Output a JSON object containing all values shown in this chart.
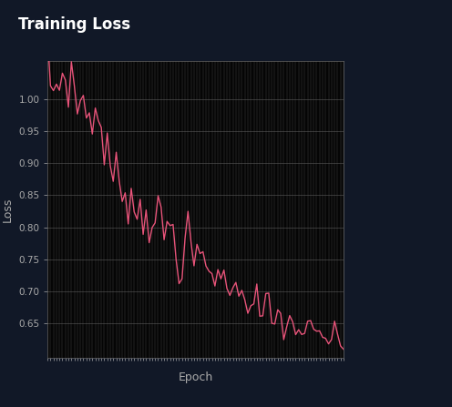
{
  "title": "Training Loss",
  "xlabel": "Epoch",
  "ylabel": "Loss",
  "bg_outer": "#111827",
  "bg_plot": "#050505",
  "title_color": "#ffffff",
  "axis_label_color": "#aaaaaa",
  "tick_label_color": "#aaaaaa",
  "line_color": "#e8547a",
  "grid_color": "#666666",
  "ylim": [
    0.595,
    1.06
  ],
  "yticks": [
    0.65,
    0.7,
    0.75,
    0.8,
    0.85,
    0.9,
    0.95,
    1.0
  ],
  "n_epochs": 100,
  "seed": 7
}
